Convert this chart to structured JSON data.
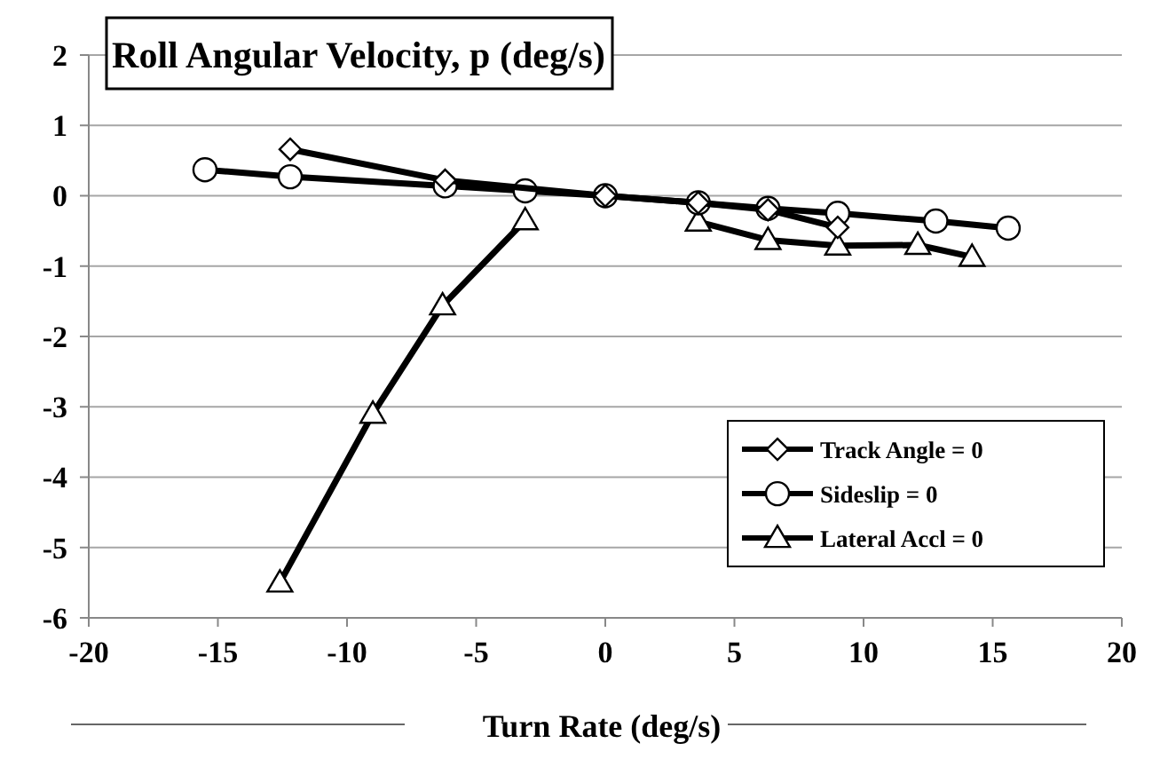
{
  "chart_data": {
    "type": "line",
    "title": "Roll Angular Velocity, p (deg/s)",
    "xlabel": "Turn Rate (deg/s)",
    "xlim": [
      -20,
      20
    ],
    "xticks": [
      -20,
      -15,
      -10,
      -5,
      0,
      5,
      10,
      15,
      20
    ],
    "ylim": [
      -6,
      2
    ],
    "yticks": [
      -6,
      -5,
      -4,
      -3,
      -2,
      -1,
      0,
      1,
      2
    ],
    "grid": "y",
    "legend": "bottom right",
    "line_style": "solid",
    "series": [
      {
        "name": "Track Angle = 0",
        "color": "#000000",
        "marker": "diamond",
        "x": [
          -12.2,
          -6.2,
          0,
          3.6,
          6.3,
          9.0
        ],
        "values": [
          0.66,
          0.22,
          0,
          -0.1,
          -0.2,
          -0.45
        ]
      },
      {
        "name": "Sideslip = 0",
        "color": "#000000",
        "marker": "circle",
        "x": [
          -15.5,
          -12.2,
          -6.2,
          -3.1,
          0,
          3.6,
          6.3,
          9.0,
          12.8,
          15.6
        ],
        "values": [
          0.37,
          0.27,
          0.14,
          0.07,
          0,
          -0.1,
          -0.18,
          -0.25,
          -0.36,
          -0.46
        ]
      },
      {
        "name": "Lateral Accl = 0",
        "color": "#000000",
        "marker": "triangle",
        "x": [
          -12.6,
          -9.0,
          -6.3,
          -3.1,
          0,
          3.6,
          6.3,
          9.0,
          12.1,
          14.2
        ],
        "values": [
          -5.5,
          -3.1,
          -1.56,
          -0.35,
          null,
          -0.37,
          -0.63,
          -0.71,
          -0.7,
          -0.87
        ]
      }
    ]
  }
}
